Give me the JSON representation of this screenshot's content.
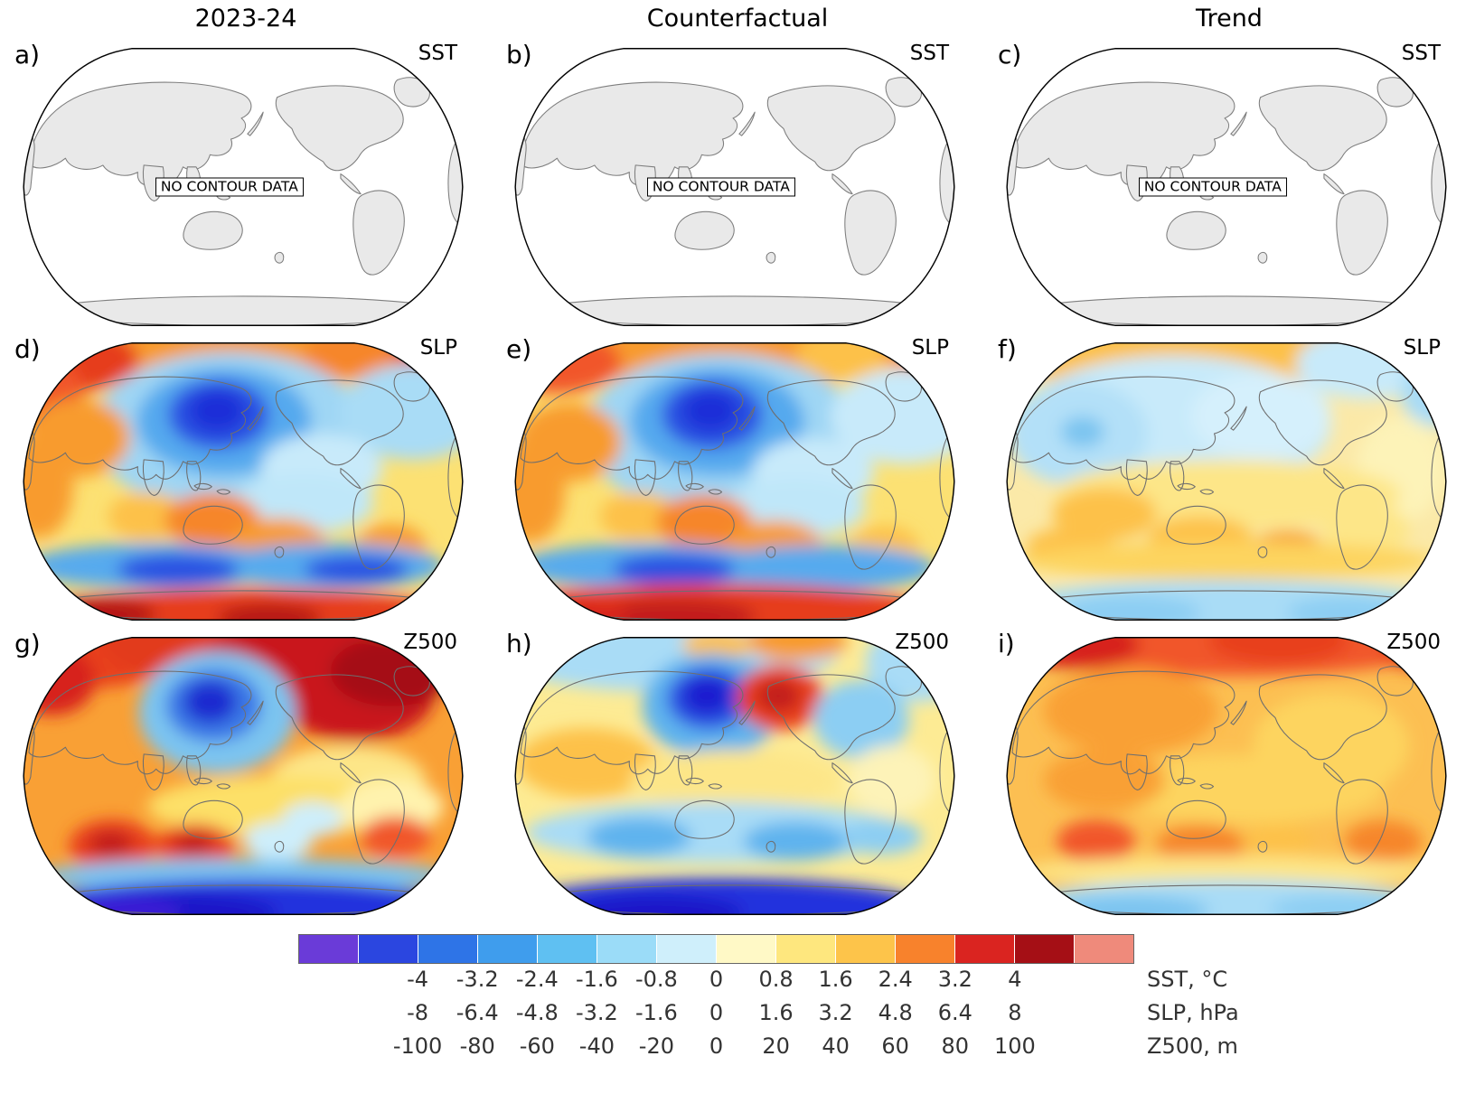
{
  "figure": {
    "column_titles": [
      "2023-24",
      "Counterfactual",
      "Trend"
    ],
    "no_data_text": "NO CONTOUR DATA"
  },
  "chart_data": {
    "type": "heatmap",
    "title": "",
    "layout": "3x3 global anomaly maps (Robinson-style projection, Pacific-centered) with shared discrete colorbar",
    "rows": [
      "SST",
      "SLP",
      "Z500"
    ],
    "columns": [
      "2023-24",
      "Counterfactual",
      "Trend"
    ],
    "panels": [
      {
        "letter": "a)",
        "variable": "SST",
        "column": "2023-24",
        "kind": "nodata"
      },
      {
        "letter": "b)",
        "variable": "SST",
        "column": "Counterfactual",
        "kind": "nodata"
      },
      {
        "letter": "c)",
        "variable": "SST",
        "column": "Trend",
        "kind": "nodata"
      },
      {
        "letter": "d)",
        "variable": "SLP",
        "column": "2023-24",
        "kind": "field",
        "base": "#fce173",
        "blobs": [
          [
            260,
            6,
            300,
            46,
            "#f89b2e"
          ],
          [
            60,
            25,
            80,
            38,
            "#e63c1e"
          ],
          [
            30,
            62,
            46,
            40,
            "#f1572a"
          ],
          [
            400,
            18,
            70,
            30,
            "#f6862c"
          ],
          [
            472,
            14,
            40,
            22,
            "#e63c1e"
          ],
          [
            245,
            108,
            160,
            92,
            "#9fd6f4"
          ],
          [
            238,
            96,
            100,
            62,
            "#55a9ee"
          ],
          [
            232,
            88,
            58,
            40,
            "#2a51e2"
          ],
          [
            230,
            84,
            32,
            24,
            "#1b2ed8"
          ],
          [
            455,
            85,
            85,
            55,
            "#a9dcf6"
          ],
          [
            350,
            150,
            70,
            40,
            "#c8eafa"
          ],
          [
            330,
            190,
            80,
            35,
            "#bfe7f9"
          ],
          [
            70,
            115,
            60,
            45,
            "#f89b2e"
          ],
          [
            25,
            170,
            40,
            60,
            "#f89b2e"
          ],
          [
            150,
            205,
            45,
            28,
            "#fdc148"
          ],
          [
            225,
            210,
            55,
            32,
            "#f6862c"
          ],
          [
            300,
            235,
            55,
            28,
            "#f89b2e"
          ],
          [
            430,
            240,
            40,
            26,
            "#f89b2e"
          ],
          [
            160,
            262,
            150,
            26,
            "#56aaee"
          ],
          [
            360,
            262,
            130,
            26,
            "#56aaee"
          ],
          [
            185,
            266,
            70,
            18,
            "#2a51e2"
          ],
          [
            390,
            266,
            60,
            16,
            "#2a51e2"
          ],
          [
            260,
            318,
            250,
            30,
            "#e63c1e"
          ],
          [
            90,
            318,
            70,
            20,
            "#b51317"
          ],
          [
            290,
            322,
            60,
            16,
            "#b51317"
          ]
        ]
      },
      {
        "letter": "e)",
        "variable": "SLP",
        "column": "Counterfactual",
        "kind": "field",
        "base": "#fce173",
        "blobs": [
          [
            260,
            6,
            300,
            46,
            "#f89b2e"
          ],
          [
            55,
            28,
            75,
            36,
            "#f1572a"
          ],
          [
            95,
            105,
            30,
            20,
            "#e63c1e"
          ],
          [
            400,
            18,
            70,
            30,
            "#fdc148"
          ],
          [
            472,
            16,
            40,
            22,
            "#f6862c"
          ],
          [
            245,
            110,
            160,
            92,
            "#9fd6f4"
          ],
          [
            240,
            96,
            100,
            62,
            "#55a9ee"
          ],
          [
            234,
            88,
            58,
            40,
            "#2a51e2"
          ],
          [
            232,
            84,
            32,
            24,
            "#1b2ed8"
          ],
          [
            455,
            90,
            85,
            55,
            "#c8eafa"
          ],
          [
            350,
            155,
            70,
            40,
            "#c8eafa"
          ],
          [
            330,
            195,
            80,
            35,
            "#bfe7f9"
          ],
          [
            70,
            120,
            60,
            45,
            "#f89b2e"
          ],
          [
            25,
            175,
            40,
            60,
            "#f89b2e"
          ],
          [
            150,
            205,
            45,
            28,
            "#fdc148"
          ],
          [
            225,
            212,
            55,
            32,
            "#f6862c"
          ],
          [
            305,
            238,
            55,
            28,
            "#f89b2e"
          ],
          [
            432,
            242,
            40,
            26,
            "#fdc148"
          ],
          [
            160,
            262,
            150,
            26,
            "#56aaee"
          ],
          [
            360,
            264,
            130,
            26,
            "#56aaee"
          ],
          [
            190,
            266,
            70,
            18,
            "#2a51e2"
          ],
          [
            230,
            316,
            260,
            34,
            "#e63c1e"
          ],
          [
            190,
            320,
            95,
            20,
            "#c21a1a"
          ],
          [
            80,
            320,
            60,
            16,
            "#d7231d"
          ]
        ]
      },
      {
        "letter": "f)",
        "variable": "SLP",
        "column": "Trend",
        "kind": "field",
        "base": "#fbe9a8",
        "blobs": [
          [
            250,
            18,
            280,
            40,
            "#fdc148"
          ],
          [
            420,
            30,
            80,
            40,
            "#c8eafa"
          ],
          [
            500,
            62,
            40,
            40,
            "#a9dcf6"
          ],
          [
            200,
            100,
            180,
            80,
            "#c8eafa"
          ],
          [
            90,
            110,
            80,
            60,
            "#b3e0f8"
          ],
          [
            95,
            108,
            25,
            18,
            "#7cc4f0"
          ],
          [
            300,
            90,
            80,
            50,
            "#d5f0fc"
          ],
          [
            460,
            150,
            50,
            60,
            "#fdf3b8"
          ],
          [
            260,
            180,
            200,
            40,
            "#fde688"
          ],
          [
            120,
            202,
            60,
            30,
            "#fdc148"
          ],
          [
            230,
            230,
            60,
            25,
            "#fdc148"
          ],
          [
            420,
            220,
            50,
            30,
            "#fde688"
          ],
          [
            80,
            240,
            50,
            22,
            "#fdc148"
          ],
          [
            330,
            240,
            40,
            18,
            "#f89b2e"
          ],
          [
            260,
            256,
            240,
            22,
            "#fdd45e"
          ],
          [
            260,
            312,
            260,
            34,
            "#a9dcf6"
          ],
          [
            150,
            316,
            80,
            20,
            "#8ccef3"
          ],
          [
            400,
            316,
            70,
            18,
            "#8ccef3"
          ]
        ]
      },
      {
        "letter": "g)",
        "variable": "Z500",
        "column": "2023-24",
        "kind": "field",
        "base": "#f9a035",
        "blobs": [
          [
            80,
            18,
            110,
            46,
            "#e8401f"
          ],
          [
            40,
            55,
            50,
            40,
            "#d7231d"
          ],
          [
            300,
            14,
            200,
            52,
            "#e23a1e"
          ],
          [
            330,
            40,
            120,
            55,
            "#c9181b"
          ],
          [
            390,
            70,
            90,
            55,
            "#c9181b"
          ],
          [
            430,
            45,
            70,
            40,
            "#a50f15"
          ],
          [
            230,
            92,
            90,
            70,
            "#7cc4f0"
          ],
          [
            226,
            84,
            55,
            42,
            "#3a78e6"
          ],
          [
            222,
            80,
            30,
            24,
            "#1f2ad0"
          ],
          [
            380,
            170,
            90,
            40,
            "#fde688"
          ],
          [
            300,
            200,
            150,
            35,
            "#fde067"
          ],
          [
            430,
            200,
            60,
            30,
            "#fff3ae"
          ],
          [
            110,
            245,
            50,
            30,
            "#e8401f"
          ],
          [
            108,
            243,
            25,
            15,
            "#c21a1a"
          ],
          [
            205,
            245,
            45,
            25,
            "#e8401f"
          ],
          [
            203,
            243,
            22,
            13,
            "#c21a1a"
          ],
          [
            300,
            240,
            40,
            22,
            "#cdeefb"
          ],
          [
            340,
            215,
            35,
            20,
            "#cdeefb"
          ],
          [
            435,
            235,
            40,
            24,
            "#f1572a"
          ],
          [
            260,
            280,
            240,
            20,
            "#7cc4f0"
          ],
          [
            260,
            318,
            250,
            34,
            "#2233dd"
          ],
          [
            180,
            322,
            120,
            22,
            "#1b18c8"
          ],
          [
            120,
            322,
            70,
            18,
            "#3a1fd4"
          ]
        ]
      },
      {
        "letter": "h)",
        "variable": "Z500",
        "column": "Counterfactual",
        "kind": "field",
        "base": "#fdeb94",
        "blobs": [
          [
            180,
            22,
            200,
            46,
            "#a9dcf6"
          ],
          [
            470,
            35,
            60,
            45,
            "#a9dcf6"
          ],
          [
            330,
            10,
            60,
            22,
            "#f89b2e"
          ],
          [
            240,
            14,
            40,
            18,
            "#fdc148"
          ],
          [
            234,
            84,
            80,
            60,
            "#5fb3ee"
          ],
          [
            230,
            76,
            48,
            36,
            "#2a51e2"
          ],
          [
            228,
            73,
            28,
            22,
            "#1a1fd0"
          ],
          [
            312,
            75,
            50,
            38,
            "#e8401f"
          ],
          [
            310,
            73,
            25,
            18,
            "#c21a1a"
          ],
          [
            405,
            100,
            55,
            45,
            "#8ccef3"
          ],
          [
            90,
            150,
            80,
            40,
            "#fdc148"
          ],
          [
            260,
            170,
            120,
            35,
            "#fde688"
          ],
          [
            440,
            170,
            50,
            40,
            "#fdf3b8"
          ],
          [
            240,
            230,
            220,
            35,
            "#a9dcf6"
          ],
          [
            150,
            235,
            60,
            22,
            "#5fb3ee"
          ],
          [
            330,
            240,
            60,
            22,
            "#5fb3ee"
          ],
          [
            430,
            235,
            45,
            20,
            "#8ccef3"
          ],
          [
            240,
            318,
            240,
            36,
            "#2233dd"
          ],
          [
            170,
            322,
            100,
            20,
            "#1b18c8"
          ]
        ]
      },
      {
        "letter": "i)",
        "variable": "Z500",
        "column": "Trend",
        "kind": "field",
        "base": "#fcbf52",
        "blobs": [
          [
            260,
            10,
            270,
            40,
            "#f1572a"
          ],
          [
            90,
            14,
            70,
            28,
            "#d7231d"
          ],
          [
            320,
            10,
            80,
            26,
            "#e8401f"
          ],
          [
            480,
            20,
            40,
            24,
            "#e8401f"
          ],
          [
            150,
            90,
            100,
            50,
            "#f9a035"
          ],
          [
            380,
            130,
            90,
            60,
            "#fdd45e"
          ],
          [
            280,
            180,
            160,
            40,
            "#fdd45e"
          ],
          [
            120,
            170,
            70,
            35,
            "#f9a035"
          ],
          [
            110,
            240,
            45,
            25,
            "#f1572a"
          ],
          [
            230,
            245,
            50,
            25,
            "#f6862c"
          ],
          [
            320,
            240,
            40,
            20,
            "#fdc148"
          ],
          [
            440,
            240,
            45,
            24,
            "#f6862c"
          ],
          [
            260,
            275,
            240,
            18,
            "#fde688"
          ],
          [
            260,
            316,
            250,
            32,
            "#a9dcf6"
          ],
          [
            150,
            320,
            90,
            18,
            "#7cc4f0"
          ],
          [
            390,
            318,
            80,
            16,
            "#8ccef3"
          ]
        ]
      }
    ],
    "colorbar": {
      "colors": [
        "#6a3bd8",
        "#2b46e0",
        "#2e74e7",
        "#3f9ded",
        "#5fc0f2",
        "#9bdcf8",
        "#cfeffb",
        "#fff9c6",
        "#fee77e",
        "#fdc44a",
        "#f8822c",
        "#da2420",
        "#a50f15",
        "#ef8a7b"
      ],
      "tick_rows": [
        {
          "unit_label": "SST, °C",
          "ticks": [
            "-4",
            "-3.2",
            "-2.4",
            "-1.6",
            "-0.8",
            "0",
            "0.8",
            "1.6",
            "2.4",
            "3.2",
            "4"
          ]
        },
        {
          "unit_label": "SLP, hPa",
          "ticks": [
            "-8",
            "-6.4",
            "-4.8",
            "-3.2",
            "-1.6",
            "0",
            "1.6",
            "3.2",
            "4.8",
            "6.4",
            "8"
          ]
        },
        {
          "unit_label": "Z500, m",
          "ticks": [
            "-100",
            "-80",
            "-60",
            "-40",
            "-20",
            "0",
            "20",
            "40",
            "60",
            "80",
            "100"
          ]
        }
      ]
    }
  }
}
